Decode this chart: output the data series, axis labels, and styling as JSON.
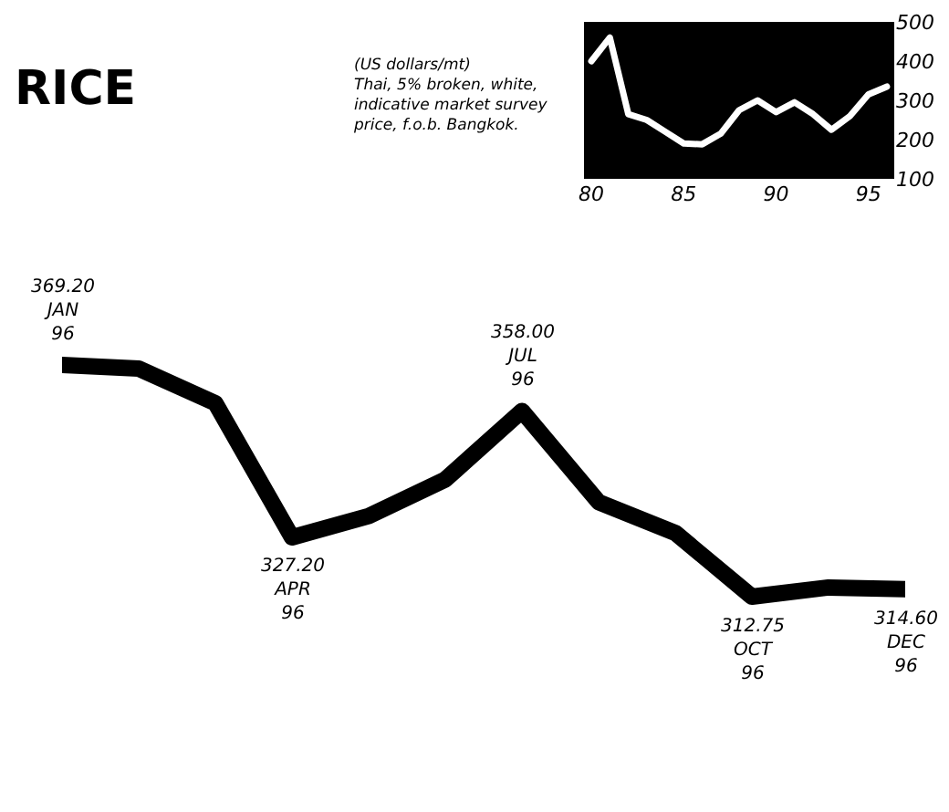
{
  "chart_data": [
    {
      "type": "line",
      "title": "RICE",
      "subtitle": "(US dollars/mt)\nThai, 5% broken, white,\nindicative market survey\nprice, f.o.b. Bangkok.",
      "categories": [
        null,
        null,
        null,
        null,
        null,
        null,
        null,
        null,
        null,
        null,
        null,
        null
      ],
      "series": [
        {
          "color": "#000000",
          "values": [
            369.2,
            368.3,
            359.9,
            327.2,
            332.4,
            341.3,
            358.0,
            335.8,
            328.3,
            312.75,
            315.0,
            314.6
          ],
          "value_labels": [
            "369.20\nJAN\n96",
            null,
            null,
            "327.20\nAPR\n96",
            null,
            null,
            "358.00\nJUL\n96",
            null,
            null,
            "312.75\nOCT\n96",
            null,
            "314.60\nDEC\n96"
          ]
        }
      ],
      "marker": "none",
      "line_style": "solid",
      "grid": false
    },
    {
      "type": "line",
      "x": [
        80,
        81,
        82,
        83,
        84,
        85,
        86,
        87,
        88,
        89,
        90,
        91,
        92,
        93,
        94,
        95,
        96
      ],
      "series": [
        {
          "color": "#ffffff",
          "values": [
            400,
            460,
            265,
            250,
            220,
            190,
            188,
            215,
            275,
            300,
            270,
            295,
            265,
            225,
            260,
            315,
            335
          ]
        }
      ],
      "xlim": [
        79.6,
        96.4
      ],
      "xticks": [
        80,
        85,
        90,
        95
      ],
      "ylim": [
        100,
        500
      ],
      "yticks": [
        100,
        200,
        300,
        400,
        500
      ],
      "marker": "none",
      "line_style": "solid",
      "grid": false
    }
  ]
}
